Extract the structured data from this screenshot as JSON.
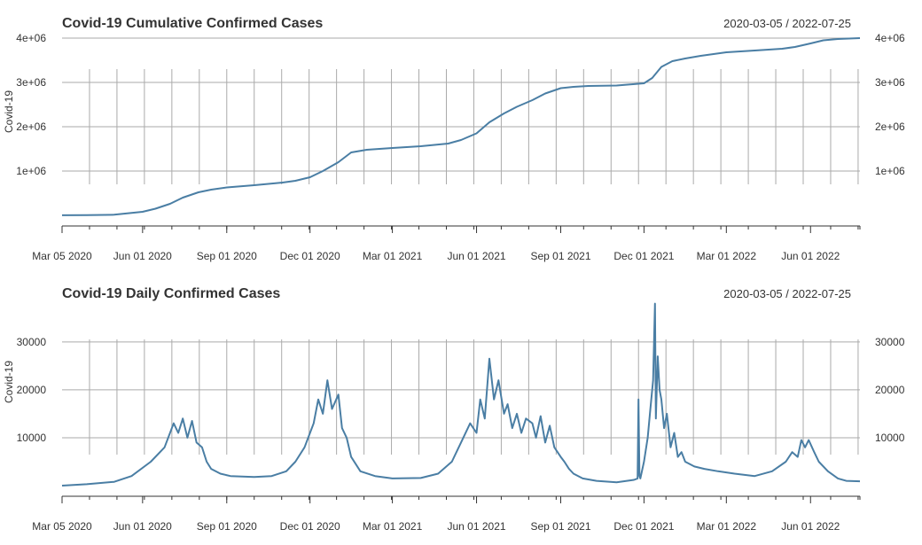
{
  "colors": {
    "line": "#4a7ea4",
    "grid": "#aaaaaa",
    "axis": "#333333"
  },
  "chart_data": [
    {
      "type": "line",
      "title": "Covid-19 Cumulative Confirmed Cases",
      "date_range": "2020-03-05 / 2022-07-25",
      "ylabel": "Covid-19",
      "xlim": [
        "2020-03-05",
        "2022-07-25"
      ],
      "ylim": [
        0,
        4000000
      ],
      "x_ticks": [
        "Mar 05 2020",
        "Jun 01 2020",
        "Sep 01 2020",
        "Dec 01 2020",
        "Mar 01 2021",
        "Jun 01 2021",
        "Sep 01 2021",
        "Dec 01 2021",
        "Mar 01 2022",
        "Jun 01 2022"
      ],
      "y_ticks": [
        1000000,
        2000000,
        3000000,
        4000000
      ],
      "y_tick_labels": [
        "1e+06",
        "2e+06",
        "3e+06",
        "4e+06"
      ],
      "grid": true,
      "series": [
        {
          "x": [
            "2020-03-05",
            "2020-04-01",
            "2020-05-01",
            "2020-06-01",
            "2020-06-15",
            "2020-07-01",
            "2020-07-15",
            "2020-08-01",
            "2020-08-15",
            "2020-09-01",
            "2020-10-01",
            "2020-11-01",
            "2020-11-15",
            "2020-12-01",
            "2020-12-15",
            "2021-01-01",
            "2021-01-15",
            "2021-02-01",
            "2021-03-01",
            "2021-04-01",
            "2021-05-01",
            "2021-05-15",
            "2021-06-01",
            "2021-06-15",
            "2021-07-01",
            "2021-07-15",
            "2021-08-01",
            "2021-08-15",
            "2021-09-01",
            "2021-09-15",
            "2021-10-01",
            "2021-11-01",
            "2021-12-01",
            "2021-12-10",
            "2021-12-20",
            "2022-01-01",
            "2022-01-15",
            "2022-02-01",
            "2022-03-01",
            "2022-04-01",
            "2022-05-01",
            "2022-05-15",
            "2022-06-01",
            "2022-06-15",
            "2022-07-01",
            "2022-07-25"
          ],
          "y": [
            2000,
            5000,
            15000,
            80000,
            150000,
            260000,
            400000,
            520000,
            580000,
            630000,
            680000,
            740000,
            780000,
            860000,
            1000000,
            1200000,
            1420000,
            1480000,
            1520000,
            1560000,
            1620000,
            1700000,
            1850000,
            2100000,
            2300000,
            2450000,
            2600000,
            2750000,
            2870000,
            2900000,
            2920000,
            2930000,
            2980000,
            3100000,
            3350000,
            3480000,
            3540000,
            3600000,
            3680000,
            3720000,
            3760000,
            3800000,
            3880000,
            3950000,
            3980000,
            4000000
          ]
        }
      ]
    },
    {
      "type": "line",
      "title": "Covid-19 Daily Confirmed Cases",
      "date_range": "2020-03-05 / 2022-07-25",
      "ylabel": "Covid-19",
      "xlim": [
        "2020-03-05",
        "2022-07-25"
      ],
      "ylim": [
        0,
        37000
      ],
      "x_ticks": [
        "Mar 05 2020",
        "Jun 01 2020",
        "Sep 01 2020",
        "Dec 01 2020",
        "Mar 01 2021",
        "Jun 01 2021",
        "Sep 01 2021",
        "Dec 01 2021",
        "Mar 01 2022",
        "Jun 01 2022"
      ],
      "y_ticks": [
        10000,
        20000,
        30000
      ],
      "y_tick_labels": [
        "10000",
        "20000",
        "30000"
      ],
      "grid": true,
      "series": [
        {
          "x": [
            "2020-03-05",
            "2020-04-01",
            "2020-05-01",
            "2020-05-20",
            "2020-06-10",
            "2020-06-25",
            "2020-07-05",
            "2020-07-10",
            "2020-07-15",
            "2020-07-20",
            "2020-07-25",
            "2020-07-30",
            "2020-08-05",
            "2020-08-10",
            "2020-08-15",
            "2020-08-25",
            "2020-09-05",
            "2020-10-01",
            "2020-10-20",
            "2020-11-05",
            "2020-11-15",
            "2020-11-25",
            "2020-12-01",
            "2020-12-05",
            "2020-12-10",
            "2020-12-15",
            "2020-12-20",
            "2020-12-25",
            "2021-01-01",
            "2021-01-05",
            "2021-01-10",
            "2021-01-15",
            "2021-01-25",
            "2021-02-10",
            "2021-03-01",
            "2021-04-01",
            "2021-04-20",
            "2021-05-05",
            "2021-05-15",
            "2021-05-25",
            "2021-06-01",
            "2021-06-05",
            "2021-06-10",
            "2021-06-15",
            "2021-06-20",
            "2021-06-25",
            "2021-07-01",
            "2021-07-05",
            "2021-07-10",
            "2021-07-15",
            "2021-07-20",
            "2021-07-25",
            "2021-08-01",
            "2021-08-05",
            "2021-08-10",
            "2021-08-15",
            "2021-08-20",
            "2021-08-25",
            "2021-09-01",
            "2021-09-05",
            "2021-09-10",
            "2021-09-15",
            "2021-09-25",
            "2021-10-10",
            "2021-11-01",
            "2021-11-20",
            "2021-11-24",
            "2021-11-25",
            "2021-11-26",
            "2021-11-27",
            "2021-12-01",
            "2021-12-05",
            "2021-12-08",
            "2021-12-11",
            "2021-12-13",
            "2021-12-14",
            "2021-12-16",
            "2021-12-18",
            "2021-12-20",
            "2021-12-23",
            "2021-12-26",
            "2021-12-30",
            "2022-01-03",
            "2022-01-07",
            "2022-01-11",
            "2022-01-15",
            "2022-01-25",
            "2022-02-05",
            "2022-02-20",
            "2022-03-10",
            "2022-04-01",
            "2022-04-20",
            "2022-05-05",
            "2022-05-12",
            "2022-05-18",
            "2022-05-22",
            "2022-05-26",
            "2022-05-30",
            "2022-06-05",
            "2022-06-10",
            "2022-06-20",
            "2022-07-01",
            "2022-07-10",
            "2022-07-25"
          ],
          "y": [
            0,
            300,
            800,
            2000,
            5000,
            8000,
            13000,
            11000,
            14000,
            10000,
            13500,
            9000,
            8000,
            5000,
            3500,
            2500,
            2000,
            1800,
            2000,
            3000,
            5000,
            8000,
            11000,
            13000,
            18000,
            15000,
            22000,
            16000,
            19000,
            12000,
            10000,
            6000,
            3000,
            2000,
            1500,
            1600,
            2500,
            5000,
            9000,
            13000,
            11000,
            18000,
            14000,
            26500,
            18000,
            22000,
            15000,
            17000,
            12000,
            15000,
            11000,
            14000,
            13000,
            10000,
            14500,
            9000,
            12500,
            8000,
            6000,
            5000,
            3500,
            2500,
            1500,
            1000,
            700,
            1200,
            1500,
            18000,
            2000,
            1500,
            5000,
            10000,
            16000,
            22000,
            38000,
            14000,
            27000,
            20000,
            18000,
            12000,
            15000,
            8000,
            11000,
            6000,
            7000,
            5000,
            4000,
            3500,
            3000,
            2500,
            2000,
            3000,
            5000,
            7000,
            6000,
            9500,
            8000,
            9500,
            7000,
            5000,
            3000,
            1500,
            1000,
            900
          ]
        }
      ]
    }
  ]
}
